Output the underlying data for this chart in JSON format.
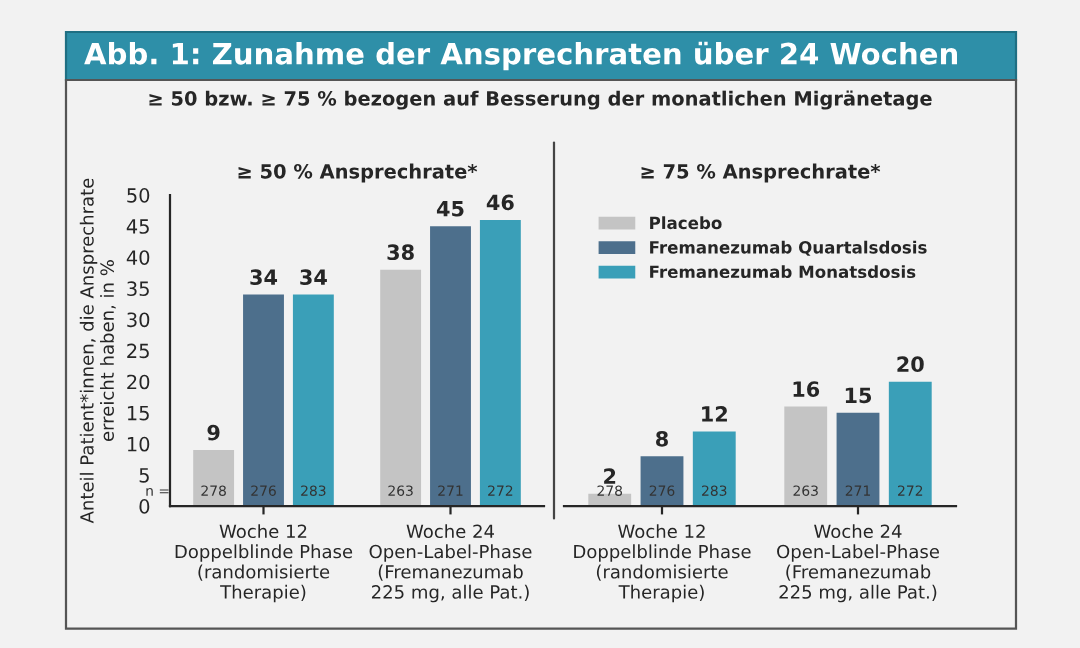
{
  "chart_data": [
    {
      "type": "other",
      "title": "Abb. 1: Zunahme der Ansprechraten über 24 Wochen",
      "subtitle": "≥ 50 bzw. ≥ 75 % bezogen auf Besserung der monatlichen Migränetage"
    },
    {
      "type": "bar",
      "title": "≥ 50 % Ansprechrate*",
      "ylabel": "Anteil Patient*innen, die Ansprechrate\nerreicht haben, in %",
      "categories": [
        "Woche 12\nDoppelblinde Phase\n(randomisierte\nTherapie)",
        "Woche 24\nOpen-Label-Phase\n(Fremanezumab\n225 mg, alle Pat.)"
      ],
      "series": [
        {
          "color": "#c4c4c4",
          "values": [
            9,
            38
          ]
        },
        {
          "color": "#4d6f8c",
          "values": [
            34,
            45
          ]
        },
        {
          "color": "#3a9fb8",
          "values": [
            34,
            46
          ]
        }
      ],
      "ylim": [
        0,
        50
      ],
      "yticks": [
        0,
        5,
        10,
        15,
        20,
        25,
        30,
        35,
        40,
        45,
        50
      ],
      "data_labels": true,
      "annotations": [
        "n =",
        "278",
        "263",
        "276",
        "271",
        "283",
        "272"
      ]
    },
    {
      "type": "bar",
      "title": "≥ 75 % Ansprechrate*",
      "categories": [
        "Woche 12\nDoppelblinde Phase\n(randomisierte\nTherapie)",
        "Woche 24\nOpen-Label-Phase\n(Fremanezumab\n225 mg, alle Pat.)"
      ],
      "series": [
        {
          "name": "Placebo",
          "color": "#c4c4c4",
          "values": [
            2,
            16
          ]
        },
        {
          "name": "Fremanezumab Quartalsdosis",
          "color": "#4d6f8c",
          "values": [
            8,
            15
          ]
        },
        {
          "name": "Fremanezumab Monatsdosis",
          "color": "#3a9fb8",
          "values": [
            12,
            20
          ]
        }
      ],
      "ylim": [
        0,
        50
      ],
      "yticks": [
        0,
        5,
        10,
        15,
        20,
        25,
        30,
        35,
        40,
        45,
        50
      ],
      "data_labels": true,
      "legend": "top left",
      "tick_labels": "x",
      "annotations": [
        "278",
        "263",
        "276",
        "271",
        "283",
        "272"
      ]
    }
  ]
}
